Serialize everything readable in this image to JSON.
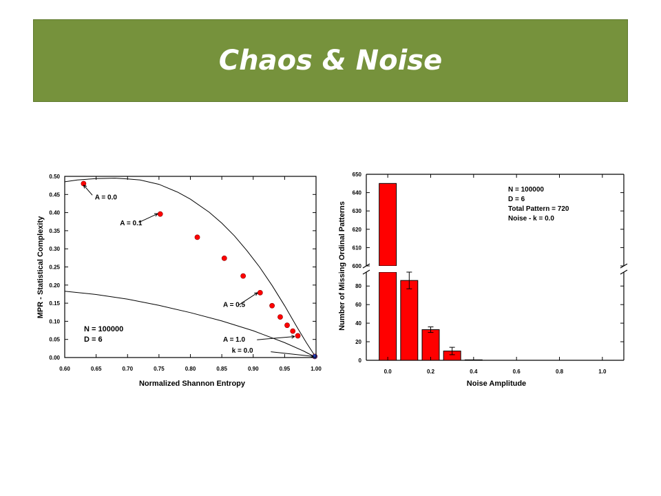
{
  "slide": {
    "title": "Chaos & Noise"
  },
  "colors": {
    "banner": "#76923c",
    "marker": "#ff0000",
    "bar": "#ff0000",
    "line": "#000000"
  },
  "chart_data": [
    {
      "type": "scatter",
      "xlabel": "Normalized Shannon Entropy",
      "ylabel": "MPR - Statistical Complexity",
      "xlim": [
        0.6,
        1.0
      ],
      "ylim": [
        0.0,
        0.5
      ],
      "xticks": [
        0.6,
        0.65,
        0.7,
        0.75,
        0.8,
        0.85,
        0.9,
        0.95,
        1.0
      ],
      "xtick_labels": [
        "0.60",
        "0.65",
        "0.70",
        "0.75",
        "0.80",
        "0.85",
        "0.90",
        "0.95",
        "1.00"
      ],
      "yticks": [
        0.0,
        0.05,
        0.1,
        0.15,
        0.2,
        0.25,
        0.3,
        0.35,
        0.4,
        0.45,
        0.5
      ],
      "ytick_labels": [
        "0.00",
        "0.05",
        "0.10",
        "0.15",
        "0.20",
        "0.25",
        "0.30",
        "0.35",
        "0.40",
        "0.45",
        "0.50"
      ],
      "grid": false,
      "points": [
        {
          "x": 0.63,
          "y": 0.48
        },
        {
          "x": 0.752,
          "y": 0.396
        },
        {
          "x": 0.811,
          "y": 0.332
        },
        {
          "x": 0.854,
          "y": 0.274
        },
        {
          "x": 0.884,
          "y": 0.225
        },
        {
          "x": 0.911,
          "y": 0.179
        },
        {
          "x": 0.93,
          "y": 0.143
        },
        {
          "x": 0.943,
          "y": 0.112
        },
        {
          "x": 0.954,
          "y": 0.089
        },
        {
          "x": 0.963,
          "y": 0.073
        },
        {
          "x": 0.971,
          "y": 0.06
        },
        {
          "x": 0.998,
          "y": 0.003
        }
      ],
      "curves": {
        "upper": [
          {
            "x": 0.6,
            "y": 0.485
          },
          {
            "x": 0.62,
            "y": 0.49
          },
          {
            "x": 0.65,
            "y": 0.494
          },
          {
            "x": 0.68,
            "y": 0.495
          },
          {
            "x": 0.7,
            "y": 0.493
          },
          {
            "x": 0.72,
            "y": 0.49
          },
          {
            "x": 0.75,
            "y": 0.478
          },
          {
            "x": 0.78,
            "y": 0.456
          },
          {
            "x": 0.8,
            "y": 0.437
          },
          {
            "x": 0.83,
            "y": 0.401
          },
          {
            "x": 0.85,
            "y": 0.371
          },
          {
            "x": 0.87,
            "y": 0.336
          },
          {
            "x": 0.89,
            "y": 0.295
          },
          {
            "x": 0.91,
            "y": 0.25
          },
          {
            "x": 0.93,
            "y": 0.199
          },
          {
            "x": 0.95,
            "y": 0.143
          },
          {
            "x": 0.97,
            "y": 0.083
          },
          {
            "x": 0.985,
            "y": 0.04
          },
          {
            "x": 1.0,
            "y": 0.0
          }
        ],
        "lower": [
          {
            "x": 0.6,
            "y": 0.183
          },
          {
            "x": 0.65,
            "y": 0.174
          },
          {
            "x": 0.7,
            "y": 0.161
          },
          {
            "x": 0.75,
            "y": 0.144
          },
          {
            "x": 0.8,
            "y": 0.124
          },
          {
            "x": 0.85,
            "y": 0.101
          },
          {
            "x": 0.9,
            "y": 0.074
          },
          {
            "x": 0.95,
            "y": 0.041
          },
          {
            "x": 0.98,
            "y": 0.018
          },
          {
            "x": 1.0,
            "y": 0.0
          }
        ]
      },
      "annotations": [
        {
          "text": "A = 0.0",
          "x": 0.648,
          "y": 0.436,
          "ax": 0.63,
          "ay": 0.476,
          "tx": 0.644,
          "ty": 0.448
        },
        {
          "text": "A = 0.1",
          "x": 0.688,
          "y": 0.365,
          "ax": 0.748,
          "ay": 0.397,
          "tx": 0.718,
          "ty": 0.373
        },
        {
          "text": "A = 0.5",
          "x": 0.852,
          "y": 0.14,
          "ax": 0.907,
          "ay": 0.179,
          "tx": 0.877,
          "ty": 0.145
        },
        {
          "text": "A = 1.0",
          "x": 0.852,
          "y": 0.044,
          "ax": 0.966,
          "ay": 0.058,
          "tx": 0.906,
          "ty": 0.049
        },
        {
          "text": "k = 0.0",
          "x": 0.866,
          "y": 0.013,
          "ax": 0.996,
          "ay": 0.003,
          "tx": 0.928,
          "ty": 0.016
        }
      ],
      "info": [
        "N = 100000",
        "D = 6"
      ]
    },
    {
      "type": "bar",
      "xlabel": "Noise  Amplitude",
      "ylabel": "Number  of  Missing  Ordinal  Patterns",
      "x": [
        0.0,
        0.1,
        0.2,
        0.3,
        0.4
      ],
      "values": [
        645,
        86,
        33,
        10,
        0.5
      ],
      "errors": [
        0,
        9,
        3,
        4,
        0
      ],
      "xlim": [
        -0.1,
        1.1
      ],
      "xticks": [
        0.0,
        0.2,
        0.4,
        0.6,
        0.8,
        1.0
      ],
      "xtick_labels": [
        "0.0",
        "0.2",
        "0.4",
        "0.6",
        "0.8",
        "1.0"
      ],
      "axis_break": true,
      "lower_ylim": [
        0,
        95
      ],
      "lower_yticks": [
        0,
        20,
        40,
        60,
        80
      ],
      "lower_ytick_labels": [
        "0",
        "20",
        "40",
        "60",
        "80"
      ],
      "upper_ylim": [
        600,
        650
      ],
      "upper_yticks": [
        600,
        610,
        620,
        630,
        640,
        650
      ],
      "upper_ytick_labels": [
        "600",
        "610",
        "620",
        "630",
        "640",
        "650"
      ],
      "grid": false,
      "info": [
        "N = 100000",
        "D = 6",
        "Total Pattern = 720",
        "Noise - k = 0.0"
      ]
    }
  ]
}
